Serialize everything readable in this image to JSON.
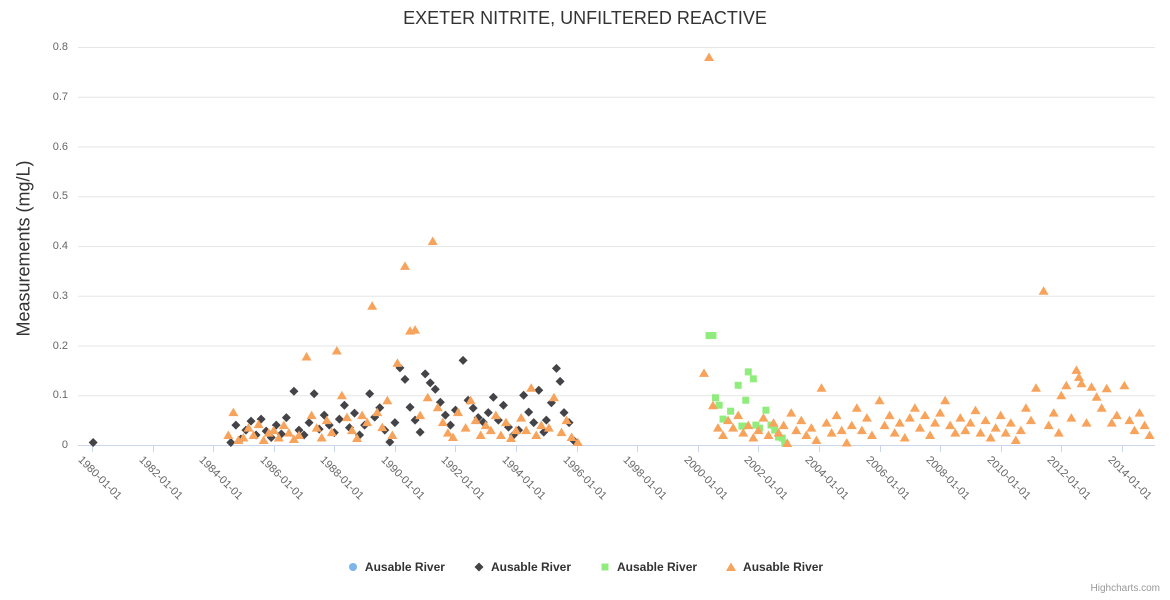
{
  "credits": {
    "text": "Highcharts.com"
  },
  "chart_data": {
    "type": "scatter",
    "title": "EXETER NITRITE, UNFILTERED REACTIVE",
    "xlabel": "",
    "ylabel": "Measurements (mg/L)",
    "ylim": [
      0,
      0.8
    ],
    "y_ticks": [
      0,
      0.1,
      0.2,
      0.3,
      0.4,
      0.5,
      0.6,
      0.7,
      0.8
    ],
    "x_tick_labels": [
      "1980-01-01",
      "1982-01-01",
      "1984-01-01",
      "1986-01-01",
      "1988-01-01",
      "1990-01-01",
      "1992-01-01",
      "1994-01-01",
      "1996-01-01",
      "1998-01-01",
      "2000-01-01",
      "2002-01-01",
      "2004-01-01",
      "2006-01-01",
      "2008-01-01",
      "2010-01-01",
      "2012-01-01",
      "2014-01-01"
    ],
    "grid": "horizontal",
    "legend_position": "bottom-center",
    "colors": {
      "grid": "#e6e6e6",
      "axis_line": "#ccd6eb",
      "tick_label": "#666666",
      "title": "#333333",
      "legend_text": "#333333",
      "credits": "#999999"
    },
    "series": [
      {
        "name": "Ausable River",
        "marker": "circle",
        "color": "#7cb5ec",
        "points": []
      },
      {
        "name": "Ausable River",
        "marker": "diamond",
        "color": "#434348",
        "points": [
          [
            "1980-01-15",
            0.005
          ],
          [
            "1984-08-01",
            0.005
          ],
          [
            "1984-10-01",
            0.04
          ],
          [
            "1984-12-01",
            0.012
          ],
          [
            "1985-02-01",
            0.03
          ],
          [
            "1985-04-01",
            0.048
          ],
          [
            "1985-06-01",
            0.02
          ],
          [
            "1985-08-01",
            0.052
          ],
          [
            "1985-10-01",
            0.028
          ],
          [
            "1985-12-01",
            0.015
          ],
          [
            "1986-02-01",
            0.04
          ],
          [
            "1986-04-01",
            0.022
          ],
          [
            "1986-06-01",
            0.055
          ],
          [
            "1986-09-01",
            0.108
          ],
          [
            "1986-11-01",
            0.03
          ],
          [
            "1987-01-01",
            0.02
          ],
          [
            "1987-03-01",
            0.045
          ],
          [
            "1987-05-01",
            0.103
          ],
          [
            "1987-07-01",
            0.032
          ],
          [
            "1987-09-01",
            0.06
          ],
          [
            "1987-11-01",
            0.04
          ],
          [
            "1988-01-01",
            0.025
          ],
          [
            "1988-03-01",
            0.052
          ],
          [
            "1988-05-01",
            0.08
          ],
          [
            "1988-07-01",
            0.035
          ],
          [
            "1988-09-01",
            0.064
          ],
          [
            "1988-11-01",
            0.02
          ],
          [
            "1989-01-01",
            0.04
          ],
          [
            "1989-03-01",
            0.103
          ],
          [
            "1989-05-01",
            0.056
          ],
          [
            "1989-07-01",
            0.075
          ],
          [
            "1989-09-01",
            0.03
          ],
          [
            "1989-11-01",
            0.006
          ],
          [
            "1990-01-01",
            0.045
          ],
          [
            "1990-03-01",
            0.155
          ],
          [
            "1990-05-01",
            0.132
          ],
          [
            "1990-07-01",
            0.076
          ],
          [
            "1990-09-01",
            0.05
          ],
          [
            "1990-11-01",
            0.026
          ],
          [
            "1991-01-01",
            0.143
          ],
          [
            "1991-03-01",
            0.125
          ],
          [
            "1991-05-01",
            0.112
          ],
          [
            "1991-07-01",
            0.086
          ],
          [
            "1991-09-01",
            0.06
          ],
          [
            "1991-11-01",
            0.04
          ],
          [
            "1992-01-01",
            0.07
          ],
          [
            "1992-04-01",
            0.17
          ],
          [
            "1992-06-01",
            0.09
          ],
          [
            "1992-08-01",
            0.074
          ],
          [
            "1992-10-01",
            0.055
          ],
          [
            "1992-12-01",
            0.046
          ],
          [
            "1993-02-01",
            0.065
          ],
          [
            "1993-04-01",
            0.096
          ],
          [
            "1993-06-01",
            0.05
          ],
          [
            "1993-08-01",
            0.08
          ],
          [
            "1993-10-01",
            0.036
          ],
          [
            "1993-12-01",
            0.02
          ],
          [
            "1994-02-01",
            0.03
          ],
          [
            "1994-04-01",
            0.1
          ],
          [
            "1994-06-01",
            0.066
          ],
          [
            "1994-08-01",
            0.045
          ],
          [
            "1994-10-01",
            0.11
          ],
          [
            "1994-12-01",
            0.026
          ],
          [
            "1995-01-01",
            0.05
          ],
          [
            "1995-03-01",
            0.085
          ],
          [
            "1995-05-01",
            0.154
          ],
          [
            "1995-06-15",
            0.128
          ],
          [
            "1995-08-01",
            0.065
          ],
          [
            "1995-10-01",
            0.045
          ],
          [
            "1995-12-01",
            0.008
          ]
        ]
      },
      {
        "name": "Ausable River",
        "marker": "square",
        "color": "#90ed7d",
        "points": [
          [
            "2000-05-15",
            0.22
          ],
          [
            "2000-07-01",
            0.22
          ],
          [
            "2000-08-01",
            0.095
          ],
          [
            "2000-09-15",
            0.08
          ],
          [
            "2000-11-01",
            0.052
          ],
          [
            "2001-02-01",
            0.068
          ],
          [
            "2001-05-01",
            0.12
          ],
          [
            "2001-06-15",
            0.038
          ],
          [
            "2001-07-01",
            0.038
          ],
          [
            "2001-08-01",
            0.09
          ],
          [
            "2001-09-01",
            0.147
          ],
          [
            "2001-11-01",
            0.133
          ],
          [
            "2001-12-01",
            0.04
          ],
          [
            "2002-01-15",
            0.034
          ],
          [
            "2002-04-01",
            0.07
          ],
          [
            "2002-06-01",
            0.04
          ],
          [
            "2002-07-15",
            0.03
          ],
          [
            "2002-09-01",
            0.016
          ],
          [
            "2002-10-15",
            0.014
          ],
          [
            "2002-11-15",
            0.004
          ]
        ]
      },
      {
        "name": "Ausable River",
        "marker": "triangle",
        "color": "#f7a35c",
        "points": [
          [
            "1984-07-01",
            0.02
          ],
          [
            "1984-09-01",
            0.066
          ],
          [
            "1984-11-01",
            0.01
          ],
          [
            "1985-01-01",
            0.015
          ],
          [
            "1985-03-01",
            0.035
          ],
          [
            "1985-05-01",
            0.02
          ],
          [
            "1985-07-01",
            0.042
          ],
          [
            "1985-09-01",
            0.01
          ],
          [
            "1985-11-01",
            0.025
          ],
          [
            "1986-01-01",
            0.03
          ],
          [
            "1986-03-01",
            0.015
          ],
          [
            "1986-05-01",
            0.04
          ],
          [
            "1986-07-01",
            0.025
          ],
          [
            "1986-09-01",
            0.012
          ],
          [
            "1986-11-01",
            0.02
          ],
          [
            "1987-02-01",
            0.178
          ],
          [
            "1987-04-01",
            0.06
          ],
          [
            "1987-06-01",
            0.035
          ],
          [
            "1987-08-01",
            0.015
          ],
          [
            "1987-10-01",
            0.05
          ],
          [
            "1987-12-01",
            0.026
          ],
          [
            "1988-02-01",
            0.19
          ],
          [
            "1988-04-01",
            0.1
          ],
          [
            "1988-06-01",
            0.056
          ],
          [
            "1988-08-01",
            0.03
          ],
          [
            "1988-10-01",
            0.014
          ],
          [
            "1988-12-01",
            0.06
          ],
          [
            "1989-02-01",
            0.046
          ],
          [
            "1989-04-01",
            0.28
          ],
          [
            "1989-06-01",
            0.066
          ],
          [
            "1989-08-01",
            0.036
          ],
          [
            "1989-10-01",
            0.09
          ],
          [
            "1989-12-01",
            0.02
          ],
          [
            "1990-02-01",
            0.165
          ],
          [
            "1990-05-01",
            0.36
          ],
          [
            "1990-07-01",
            0.23
          ],
          [
            "1990-09-01",
            0.232
          ],
          [
            "1990-11-01",
            0.06
          ],
          [
            "1991-02-01",
            0.096
          ],
          [
            "1991-04-01",
            0.41
          ],
          [
            "1991-06-01",
            0.076
          ],
          [
            "1991-08-01",
            0.046
          ],
          [
            "1991-10-01",
            0.025
          ],
          [
            "1991-12-01",
            0.016
          ],
          [
            "1992-02-01",
            0.066
          ],
          [
            "1992-05-01",
            0.035
          ],
          [
            "1992-07-01",
            0.09
          ],
          [
            "1992-09-01",
            0.05
          ],
          [
            "1992-11-01",
            0.02
          ],
          [
            "1993-01-01",
            0.04
          ],
          [
            "1993-03-01",
            0.03
          ],
          [
            "1993-05-01",
            0.06
          ],
          [
            "1993-07-01",
            0.02
          ],
          [
            "1993-09-01",
            0.046
          ],
          [
            "1993-11-01",
            0.014
          ],
          [
            "1994-01-01",
            0.03
          ],
          [
            "1994-03-01",
            0.055
          ],
          [
            "1994-05-01",
            0.03
          ],
          [
            "1994-07-01",
            0.115
          ],
          [
            "1994-09-01",
            0.02
          ],
          [
            "1994-11-01",
            0.04
          ],
          [
            "1995-02-01",
            0.035
          ],
          [
            "1995-04-01",
            0.096
          ],
          [
            "1995-07-01",
            0.026
          ],
          [
            "1995-09-01",
            0.05
          ],
          [
            "1995-11-01",
            0.016
          ],
          [
            "1996-01-15",
            0.006
          ],
          [
            "2000-03-15",
            0.145
          ],
          [
            "2000-05-15",
            0.78
          ],
          [
            "2000-07-01",
            0.08
          ],
          [
            "2000-09-01",
            0.035
          ],
          [
            "2000-11-01",
            0.02
          ],
          [
            "2001-01-01",
            0.05
          ],
          [
            "2001-03-01",
            0.035
          ],
          [
            "2001-05-01",
            0.06
          ],
          [
            "2001-07-01",
            0.025
          ],
          [
            "2001-09-01",
            0.04
          ],
          [
            "2001-11-01",
            0.015
          ],
          [
            "2002-01-01",
            0.03
          ],
          [
            "2002-03-01",
            0.055
          ],
          [
            "2002-05-01",
            0.02
          ],
          [
            "2002-07-01",
            0.045
          ],
          [
            "2002-09-01",
            0.025
          ],
          [
            "2002-11-01",
            0.04
          ],
          [
            "2002-12-15",
            0.004
          ],
          [
            "2003-02-01",
            0.065
          ],
          [
            "2003-04-01",
            0.03
          ],
          [
            "2003-06-01",
            0.05
          ],
          [
            "2003-08-01",
            0.02
          ],
          [
            "2003-10-01",
            0.035
          ],
          [
            "2003-12-01",
            0.01
          ],
          [
            "2004-02-01",
            0.115
          ],
          [
            "2004-04-01",
            0.045
          ],
          [
            "2004-06-01",
            0.025
          ],
          [
            "2004-08-01",
            0.06
          ],
          [
            "2004-10-01",
            0.03
          ],
          [
            "2004-12-01",
            0.005
          ],
          [
            "2005-02-01",
            0.04
          ],
          [
            "2005-04-01",
            0.075
          ],
          [
            "2005-06-01",
            0.03
          ],
          [
            "2005-08-01",
            0.055
          ],
          [
            "2005-10-01",
            0.02
          ],
          [
            "2006-01-01",
            0.09
          ],
          [
            "2006-03-01",
            0.04
          ],
          [
            "2006-05-01",
            0.06
          ],
          [
            "2006-07-01",
            0.025
          ],
          [
            "2006-09-01",
            0.045
          ],
          [
            "2006-11-01",
            0.015
          ],
          [
            "2007-01-01",
            0.055
          ],
          [
            "2007-03-01",
            0.075
          ],
          [
            "2007-05-01",
            0.035
          ],
          [
            "2007-07-01",
            0.06
          ],
          [
            "2007-09-01",
            0.02
          ],
          [
            "2007-11-01",
            0.045
          ],
          [
            "2008-01-01",
            0.065
          ],
          [
            "2008-03-01",
            0.09
          ],
          [
            "2008-05-01",
            0.04
          ],
          [
            "2008-07-01",
            0.025
          ],
          [
            "2008-09-01",
            0.055
          ],
          [
            "2008-11-01",
            0.03
          ],
          [
            "2009-01-01",
            0.045
          ],
          [
            "2009-03-01",
            0.07
          ],
          [
            "2009-05-01",
            0.025
          ],
          [
            "2009-07-01",
            0.05
          ],
          [
            "2009-09-01",
            0.015
          ],
          [
            "2009-11-01",
            0.035
          ],
          [
            "2010-01-01",
            0.06
          ],
          [
            "2010-03-01",
            0.025
          ],
          [
            "2010-05-01",
            0.045
          ],
          [
            "2010-07-01",
            0.01
          ],
          [
            "2010-09-01",
            0.03
          ],
          [
            "2010-11-01",
            0.075
          ],
          [
            "2011-01-01",
            0.05
          ],
          [
            "2011-03-01",
            0.115
          ],
          [
            "2011-06-01",
            0.31
          ],
          [
            "2011-08-01",
            0.04
          ],
          [
            "2011-10-01",
            0.065
          ],
          [
            "2011-12-01",
            0.025
          ],
          [
            "2012-01-01",
            0.1
          ],
          [
            "2012-03-01",
            0.12
          ],
          [
            "2012-05-01",
            0.055
          ],
          [
            "2012-07-01",
            0.151
          ],
          [
            "2012-08-01",
            0.137
          ],
          [
            "2012-09-01",
            0.124
          ],
          [
            "2012-11-01",
            0.045
          ],
          [
            "2013-01-01",
            0.117
          ],
          [
            "2013-03-01",
            0.097
          ],
          [
            "2013-05-01",
            0.075
          ],
          [
            "2013-07-01",
            0.114
          ],
          [
            "2013-09-01",
            0.045
          ],
          [
            "2013-11-01",
            0.06
          ],
          [
            "2014-02-01",
            0.12
          ],
          [
            "2014-04-01",
            0.05
          ],
          [
            "2014-06-01",
            0.03
          ],
          [
            "2014-08-01",
            0.065
          ],
          [
            "2014-10-01",
            0.04
          ],
          [
            "2014-12-01",
            0.02
          ]
        ]
      }
    ]
  }
}
